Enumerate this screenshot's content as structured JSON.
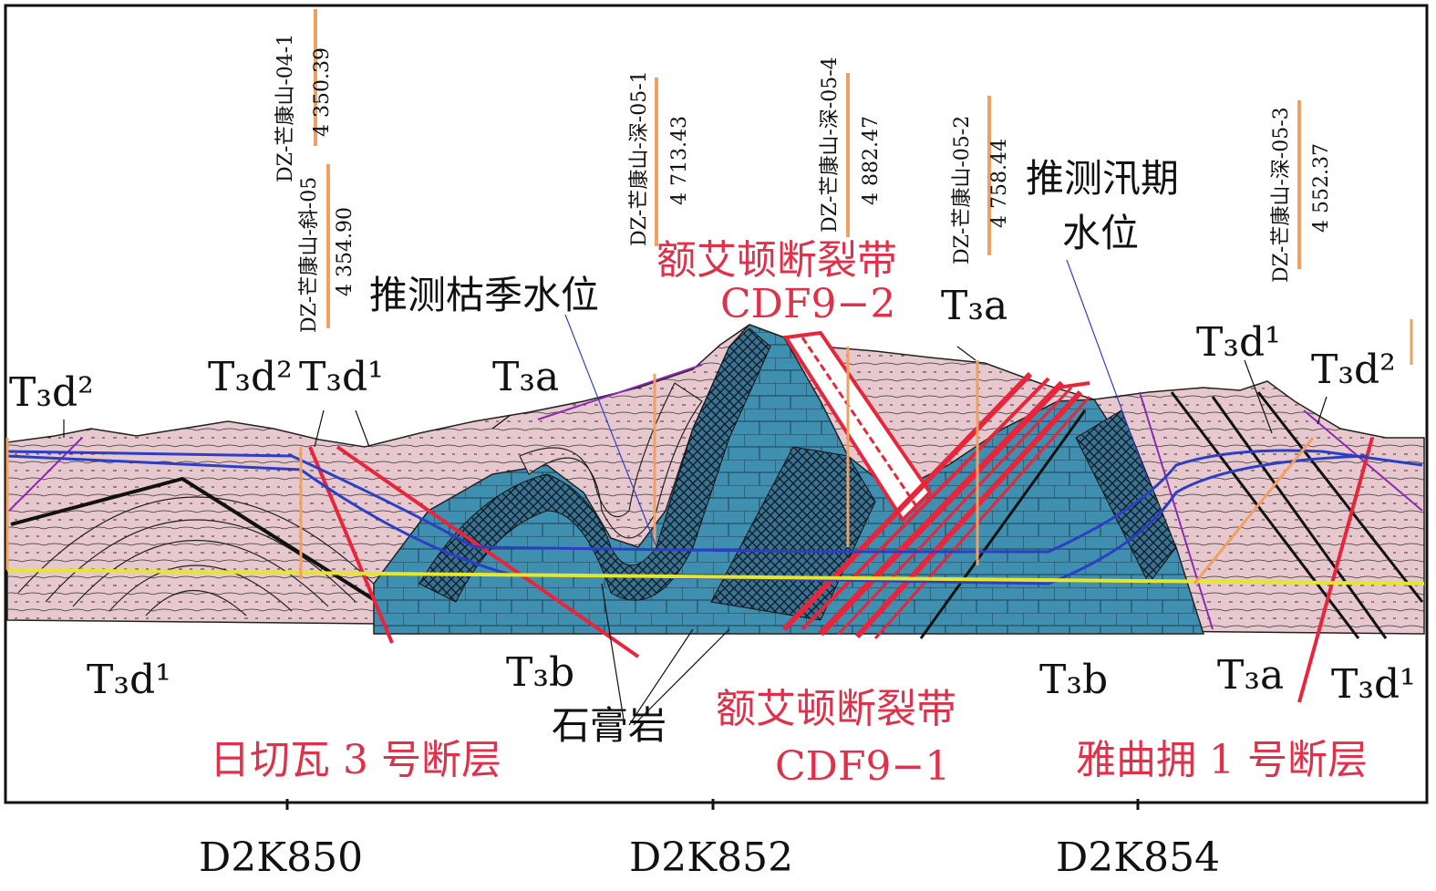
{
  "boreholes": [
    {
      "name": "DZ-芒康山-04-1",
      "elev": "4 350.39"
    },
    {
      "name": "DZ-芒康山-斜-05",
      "elev": "4 354.90"
    },
    {
      "name": "DZ-芒康山-深-05-1",
      "elev": "4 713.43"
    },
    {
      "name": "DZ-芒康山-深-05-4",
      "elev": "4 882.47"
    },
    {
      "name": "DZ-芒康山-05-2",
      "elev": "4 758.44"
    },
    {
      "name": "DZ-芒康山-深-05-3",
      "elev": "4 552.37"
    }
  ],
  "labels": {
    "dry_water": "推测枯季水位",
    "flood_water_1": "推测汛期",
    "flood_water_2": "水位",
    "gypsum": "石膏岩"
  },
  "faults": {
    "ed_top_1": "额艾顿断裂带",
    "ed_top_2": "CDF9−2",
    "ed_bottom_1": "额艾顿断裂带",
    "ed_bottom_2": "CDF9−1",
    "riqie": "日切瓦 3 号断层",
    "yaqu": "雅曲拥 1 号断层"
  },
  "formations": {
    "t3d2": "T₃d²",
    "t3d1": "T₃d¹",
    "t3a": "T₃a",
    "t3b": "T₃b"
  },
  "stations": [
    "D2K850",
    "D2K852",
    "D2K854"
  ],
  "colors": {
    "pink": "#e8c8cf",
    "blue": "#3f8fb0",
    "fault_red": "#e8253a",
    "water_blue": "#2c3fc4",
    "yellow": "#e6e62a",
    "orange": "#f0a060"
  }
}
